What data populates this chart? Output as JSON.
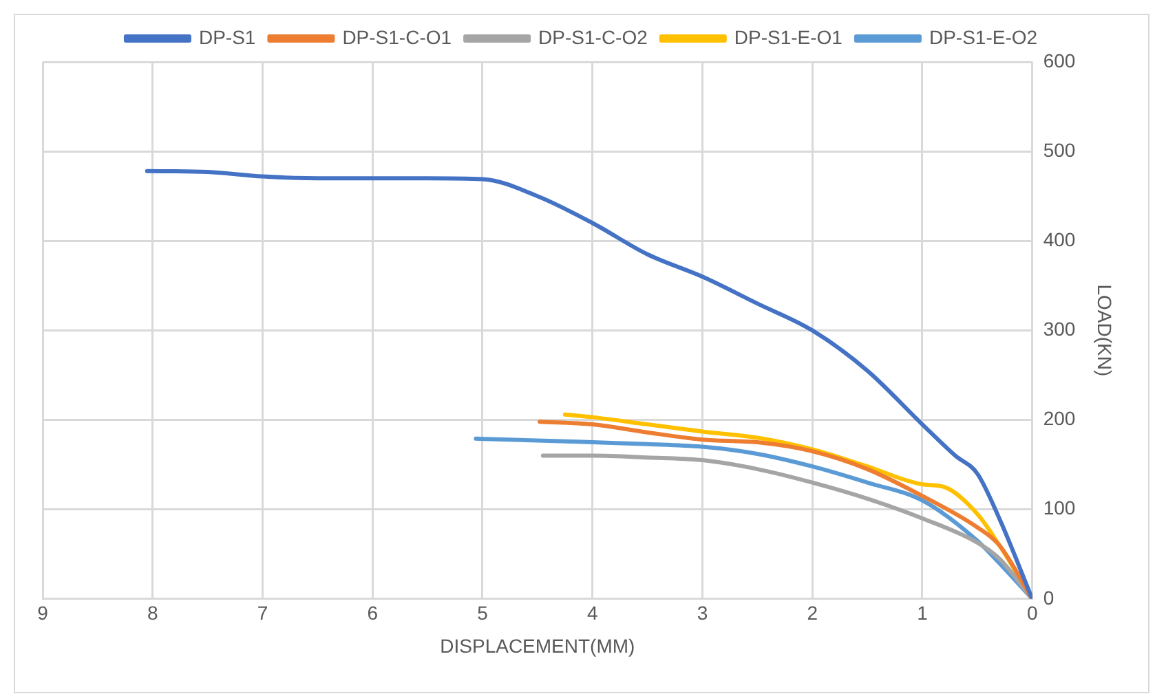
{
  "chart_data": {
    "type": "line",
    "xlabel": "DISPLACEMENT(MM)",
    "ylabel": "LOAD(KN)",
    "xlim": [
      9,
      0
    ],
    "xticks": [
      9,
      8,
      7,
      6,
      5,
      4,
      3,
      2,
      1,
      0
    ],
    "ylim": [
      0,
      600
    ],
    "yticks": [
      0,
      100,
      200,
      300,
      400,
      500,
      600
    ],
    "grid": true,
    "legend": "top",
    "marker": "none",
    "series": [
      {
        "name": "DP-S1",
        "color": "#4472c4",
        "x": [
          8.05,
          7.5,
          7,
          6.5,
          6,
          5.5,
          5,
          4.5,
          4,
          3.5,
          3,
          2.5,
          2,
          1.5,
          1,
          0.7,
          0.5,
          0.3,
          0
        ],
        "values": [
          478,
          477,
          472,
          470,
          470,
          470,
          469,
          450,
          420,
          385,
          360,
          330,
          300,
          255,
          195,
          160,
          140,
          90,
          0
        ]
      },
      {
        "name": "DP-S1-C-O1",
        "color": "#ed7d31",
        "x": [
          4.48,
          4,
          3.5,
          3,
          2.5,
          2,
          1.5,
          1,
          0.5,
          0.3,
          0
        ],
        "values": [
          198,
          195,
          186,
          178,
          175,
          165,
          145,
          115,
          80,
          60,
          0
        ]
      },
      {
        "name": "DP-S1-C-O2",
        "color": "#a5a5a5",
        "x": [
          4.45,
          4,
          3.5,
          3,
          2.5,
          2,
          1.5,
          1,
          0.5,
          0.3,
          0
        ],
        "values": [
          160,
          160,
          158,
          155,
          145,
          130,
          112,
          90,
          63,
          45,
          0
        ]
      },
      {
        "name": "DP-S1-E-O1",
        "color": "#ffc000",
        "x": [
          4.25,
          4,
          3.5,
          3,
          2.5,
          2,
          1.5,
          1,
          0.8,
          0.5,
          0.3,
          0
        ],
        "values": [
          206,
          203,
          195,
          187,
          180,
          167,
          148,
          128,
          125,
          95,
          60,
          0
        ]
      },
      {
        "name": "DP-S1-E-O2",
        "color": "#5b9bd5",
        "x": [
          5.06,
          4.5,
          4,
          3.5,
          3,
          2.5,
          2,
          1.5,
          1,
          0.5,
          0.3,
          0
        ],
        "values": [
          179,
          177,
          175,
          173,
          170,
          162,
          148,
          130,
          110,
          65,
          40,
          0
        ]
      }
    ]
  }
}
